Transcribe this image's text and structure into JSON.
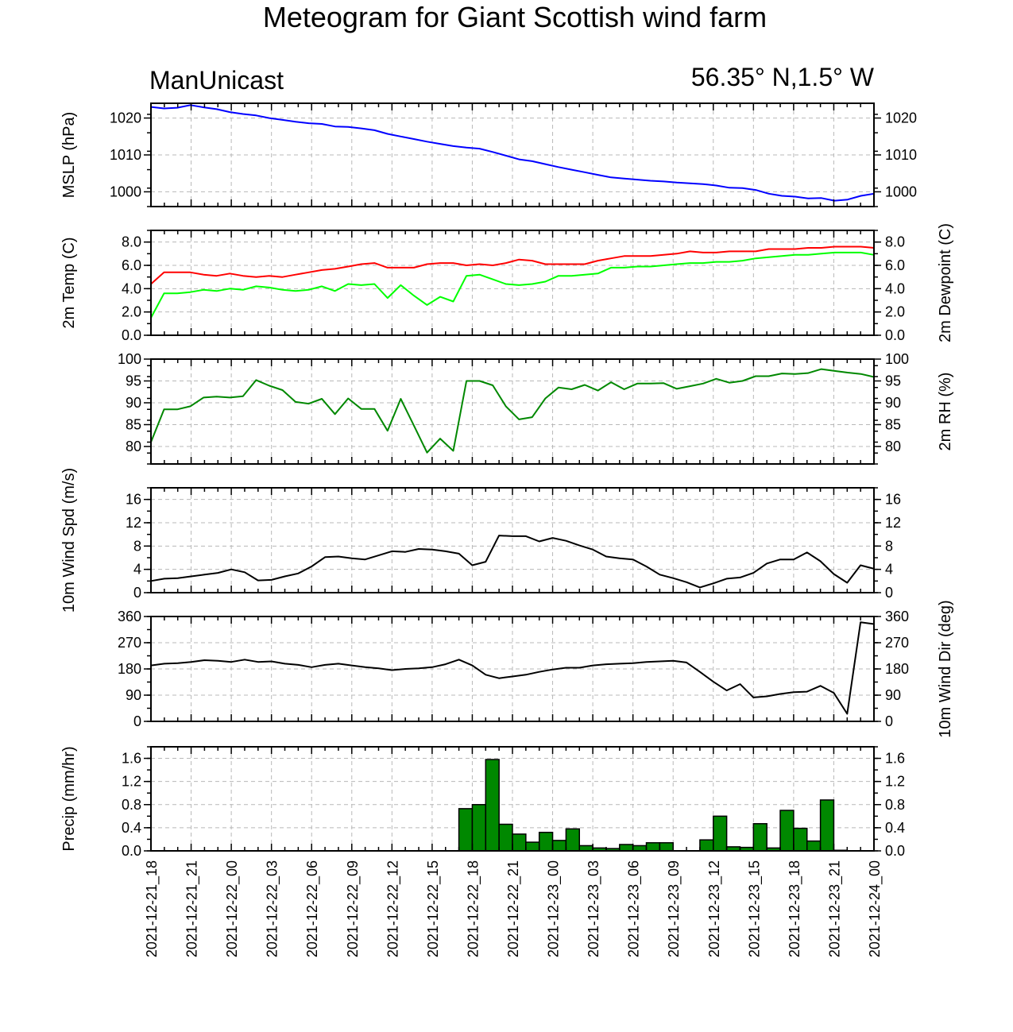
{
  "title": "Meteogram for Giant Scottish wind farm",
  "left_subtitle": "ManUnicast",
  "right_subtitle": "56.35° N,1.5° W",
  "x_tick_labels": [
    "2021-12-21_18",
    "2021-12-21_21",
    "2021-12-22_00",
    "2021-12-22_03",
    "2021-12-22_06",
    "2021-12-22_09",
    "2021-12-22_12",
    "2021-12-22_15",
    "2021-12-22_18",
    "2021-12-22_21",
    "2021-12-23_00",
    "2021-12-23_03",
    "2021-12-23_06",
    "2021-12-23_09",
    "2021-12-23_12",
    "2021-12-23_15",
    "2021-12-23_18",
    "2021-12-23_21",
    "2021-12-24_00"
  ],
  "chart_data": [
    {
      "type": "line",
      "panel": "mslp",
      "ylabel": "MSLP (hPa)",
      "ylim": [
        996,
        1024
      ],
      "yticks": [
        1000,
        1010,
        1020
      ],
      "yticklabels": [
        "1000",
        "1010",
        "1020"
      ],
      "x_range_hours": [
        0,
        54
      ],
      "series": [
        {
          "color": "#0000ff",
          "values": [
            1023.0,
            1022.6,
            1022.8,
            1023.5,
            1022.9,
            1022.4,
            1021.6,
            1021.1,
            1020.7,
            1020.0,
            1019.5,
            1019.0,
            1018.6,
            1018.4,
            1017.7,
            1017.6,
            1017.2,
            1016.7,
            1015.7,
            1015.0,
            1014.3,
            1013.6,
            1013.0,
            1012.4,
            1012.0,
            1011.7,
            1010.8,
            1009.8,
            1008.8,
            1008.3,
            1007.5,
            1006.7,
            1006.0,
            1005.3,
            1004.6,
            1003.9,
            1003.6,
            1003.3,
            1003.0,
            1002.8,
            1002.5,
            1002.3,
            1002.1,
            1001.7,
            1001.1,
            1001.0,
            1000.5,
            999.5,
            998.9,
            998.7,
            998.2,
            998.3,
            997.6,
            997.9,
            998.9,
            999.5
          ]
        }
      ]
    },
    {
      "type": "line",
      "panel": "temperature",
      "ylabel": "2m Temp (C)",
      "ylabel_right": "2m Dewpoint (C)",
      "ylim": [
        0,
        9
      ],
      "yticks": [
        0,
        2,
        4,
        6,
        8
      ],
      "yticklabels": [
        "0.0",
        "2.0",
        "4.0",
        "6.0",
        "8.0"
      ],
      "x_range_hours": [
        0,
        54
      ],
      "series": [
        {
          "color": "#ff0000",
          "values": [
            4.4,
            5.4,
            5.4,
            5.4,
            5.2,
            5.1,
            5.3,
            5.1,
            5.0,
            5.1,
            5.0,
            5.2,
            5.4,
            5.6,
            5.7,
            5.9,
            6.1,
            6.2,
            5.8,
            5.8,
            5.8,
            6.1,
            6.2,
            6.2,
            6.0,
            6.1,
            6.0,
            6.2,
            6.5,
            6.4,
            6.1,
            6.1,
            6.1,
            6.1,
            6.4,
            6.6,
            6.8,
            6.8,
            6.8,
            6.9,
            7.0,
            7.2,
            7.1,
            7.1,
            7.2,
            7.2,
            7.2,
            7.4,
            7.4,
            7.4,
            7.5,
            7.5,
            7.6,
            7.6,
            7.6,
            7.5
          ]
        },
        {
          "color": "#00ff00",
          "values": [
            1.5,
            3.6,
            3.6,
            3.7,
            3.9,
            3.8,
            4.0,
            3.9,
            4.2,
            4.1,
            3.9,
            3.8,
            3.9,
            4.2,
            3.8,
            4.4,
            4.3,
            4.4,
            3.2,
            4.3,
            3.4,
            2.6,
            3.3,
            2.9,
            5.1,
            5.2,
            4.8,
            4.4,
            4.3,
            4.4,
            4.6,
            5.1,
            5.1,
            5.2,
            5.3,
            5.8,
            5.8,
            5.9,
            5.9,
            6.0,
            6.1,
            6.2,
            6.2,
            6.3,
            6.3,
            6.4,
            6.6,
            6.7,
            6.8,
            6.9,
            6.9,
            7.0,
            7.1,
            7.1,
            7.1,
            6.9
          ]
        }
      ]
    },
    {
      "type": "line",
      "panel": "rh",
      "ylabel_right": "2m RH (%)",
      "ylim": [
        76,
        100
      ],
      "yticks": [
        80,
        85,
        90,
        95,
        100
      ],
      "yticklabels": [
        "80",
        "85",
        "90",
        "95",
        "100"
      ],
      "x_range_hours": [
        0,
        54
      ],
      "series": [
        {
          "color": "#008800",
          "values": [
            81,
            88.5,
            88.5,
            89.2,
            91.2,
            91.4,
            91.2,
            91.5,
            95.2,
            93.9,
            92.9,
            90.2,
            89.8,
            90.9,
            87.4,
            91,
            88.6,
            88.6,
            83.6,
            90.9,
            84.8,
            78.6,
            81.8,
            79,
            95,
            95,
            94,
            89.2,
            86.2,
            86.7,
            91,
            93.5,
            93.1,
            94.1,
            92.8,
            94.7,
            93.1,
            94.4,
            94.4,
            94.5,
            93.2,
            93.8,
            94.4,
            95.5,
            94.6,
            95,
            96.1,
            96.1,
            96.7,
            96.6,
            96.8,
            97.7,
            97.3,
            96.9,
            96.6,
            95.9
          ]
        }
      ]
    },
    {
      "type": "line",
      "panel": "wind_speed",
      "ylabel": "10m Wind Spd (m/s)",
      "ylim": [
        0,
        18
      ],
      "yticks": [
        0,
        4,
        8,
        12,
        16
      ],
      "yticklabels": [
        "0",
        "4",
        "8",
        "12",
        "16"
      ],
      "x_range_hours": [
        0,
        54
      ],
      "series": [
        {
          "color": "#000000",
          "values": [
            2.0,
            2.4,
            2.5,
            2.8,
            3.1,
            3.4,
            4.0,
            3.5,
            2.1,
            2.2,
            2.8,
            3.3,
            4.5,
            6.1,
            6.2,
            5.9,
            5.7,
            6.4,
            7.1,
            7.0,
            7.5,
            7.4,
            7.1,
            6.7,
            4.7,
            5.3,
            9.8,
            9.7,
            9.7,
            8.8,
            9.4,
            8.9,
            8.1,
            7.4,
            6.2,
            5.9,
            5.7,
            4.5,
            3.1,
            2.5,
            1.8,
            0.9,
            1.6,
            2.4,
            2.6,
            3.4,
            5.0,
            5.7,
            5.7,
            6.9,
            5.4,
            3.2,
            1.7,
            4.7,
            4.1
          ]
        }
      ]
    },
    {
      "type": "line",
      "panel": "wind_direction",
      "ylabel_right": "10m Wind Dir (deg)",
      "ylim": [
        0,
        360
      ],
      "yticks": [
        0,
        90,
        180,
        270,
        360
      ],
      "yticklabels": [
        "0",
        "90",
        "180",
        "270",
        "360"
      ],
      "x_range_hours": [
        0,
        54
      ],
      "series": [
        {
          "color": "#000000",
          "values": [
            192,
            198,
            200,
            204,
            210,
            208,
            204,
            212,
            204,
            206,
            198,
            194,
            186,
            194,
            198,
            192,
            186,
            182,
            176,
            180,
            182,
            186,
            196,
            212,
            192,
            160,
            148,
            154,
            160,
            170,
            178,
            184,
            184,
            192,
            196,
            198,
            200,
            204,
            206,
            208,
            202,
            170,
            136,
            106,
            128,
            82,
            86,
            94,
            100,
            102,
            122,
            98,
            26,
            340,
            334
          ]
        }
      ]
    },
    {
      "type": "bar",
      "panel": "precip",
      "ylabel": "Precip (mm/hr)",
      "ylim": [
        0,
        1.8
      ],
      "yticks": [
        0,
        0.4,
        0.8,
        1.2,
        1.6
      ],
      "yticklabels": [
        "0.0",
        "0.4",
        "0.8",
        "1.2",
        "1.6"
      ],
      "x_range_hours": [
        0,
        54
      ],
      "bar_start_hours": [
        23,
        24,
        25,
        26,
        27,
        28,
        29,
        30,
        31,
        32,
        33,
        34,
        35,
        36,
        37,
        38,
        39,
        40,
        41,
        42,
        43,
        44,
        45,
        46,
        47,
        48,
        49,
        50,
        51,
        52
      ],
      "bar_width_hours": 1,
      "bar_color": "#008800",
      "values": [
        0.73,
        0.8,
        1.58,
        0.46,
        0.29,
        0.15,
        0.32,
        0.18,
        0.38,
        0.09,
        0.05,
        0.04,
        0.11,
        0.09,
        0.14,
        0.14,
        0.0,
        0.0,
        0.19,
        0.6,
        0.07,
        0.06,
        0.47,
        0.05,
        0.7,
        0.39,
        0.17,
        0.88,
        0.01,
        0.0
      ]
    }
  ]
}
